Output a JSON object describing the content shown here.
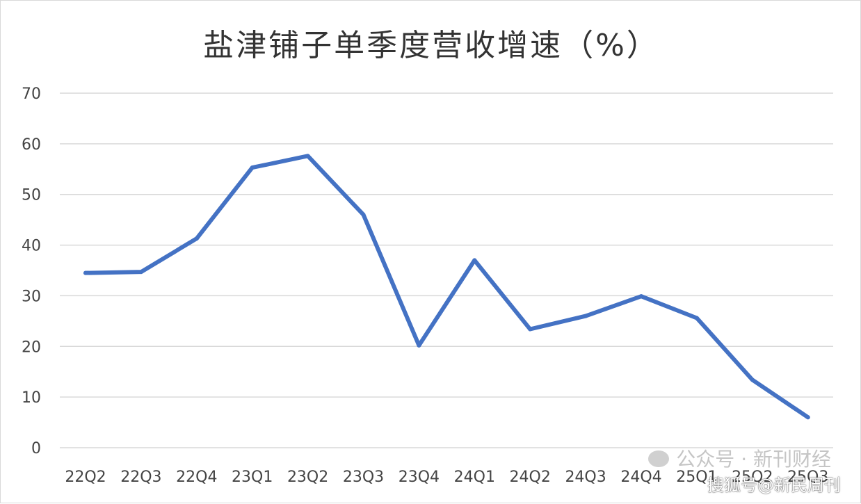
{
  "chart_data": {
    "type": "line",
    "title": "盐津铺子单季度营收增速（%）",
    "xlabel": "",
    "ylabel": "",
    "categories": [
      "22Q2",
      "22Q3",
      "22Q4",
      "23Q1",
      "23Q2",
      "23Q3",
      "23Q4",
      "24Q1",
      "24Q2",
      "24Q3",
      "24Q4",
      "25Q1",
      "25Q2",
      "25Q3"
    ],
    "series": [
      {
        "values": [
          34.5,
          34.7,
          41.3,
          55.3,
          57.6,
          46.0,
          20.2,
          37.0,
          23.4,
          26.0,
          29.9,
          25.6,
          13.4,
          6.0
        ],
        "color": "#4472c4"
      }
    ],
    "ylim": [
      0,
      70
    ],
    "yticks": [
      0,
      10,
      20,
      30,
      40,
      50,
      60,
      70
    ],
    "grid": true,
    "legend": "none",
    "gridline_color": "#d9d9d9"
  },
  "watermarks": {
    "primary": "公众号 · 新刊财经",
    "secondary": "搜狐号@新民周刊"
  }
}
